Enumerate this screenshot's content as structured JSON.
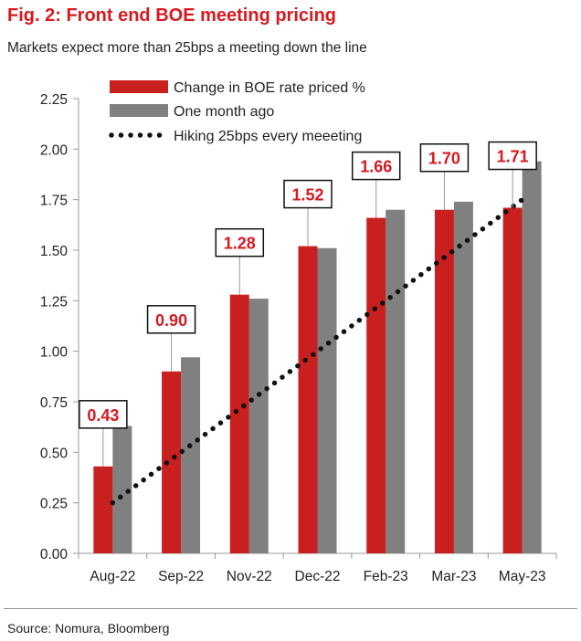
{
  "title": "Fig. 2: Front end BOE meeting pricing",
  "subtitle": "Markets expect more than 25bps a meeting down the line",
  "source": "Source: Nomura, Bloomberg",
  "colors": {
    "accent": "#d71920",
    "current": "#c8201f",
    "prior": "#808080",
    "path": "#111111"
  },
  "chart_data": {
    "type": "bar",
    "categories": [
      "Aug-22",
      "Sep-22",
      "Nov-22",
      "Dec-22",
      "Feb-23",
      "Mar-23",
      "May-23"
    ],
    "series": [
      {
        "name": "Change in BOE rate priced %",
        "values": [
          0.43,
          0.9,
          1.28,
          1.52,
          1.66,
          1.7,
          1.71
        ],
        "labels": [
          "0.43",
          "0.90",
          "1.28",
          "1.52",
          "1.66",
          "1.70",
          "1.71"
        ]
      },
      {
        "name": "One month ago",
        "values": [
          0.63,
          0.97,
          1.26,
          1.51,
          1.7,
          1.74,
          1.94
        ]
      },
      {
        "name": "Hiking 25bps every meeeting",
        "type": "line",
        "style": "dotted",
        "values": [
          0.25,
          0.5,
          0.75,
          1.0,
          1.25,
          1.5,
          1.75
        ]
      }
    ],
    "ylim": [
      0,
      2.25
    ],
    "yticks": [
      "0.00",
      "0.25",
      "0.50",
      "0.75",
      "1.00",
      "1.25",
      "1.50",
      "1.75",
      "2.00",
      "2.25"
    ],
    "xlabel": "",
    "ylabel": "",
    "legend": "top-left",
    "grid": false
  }
}
